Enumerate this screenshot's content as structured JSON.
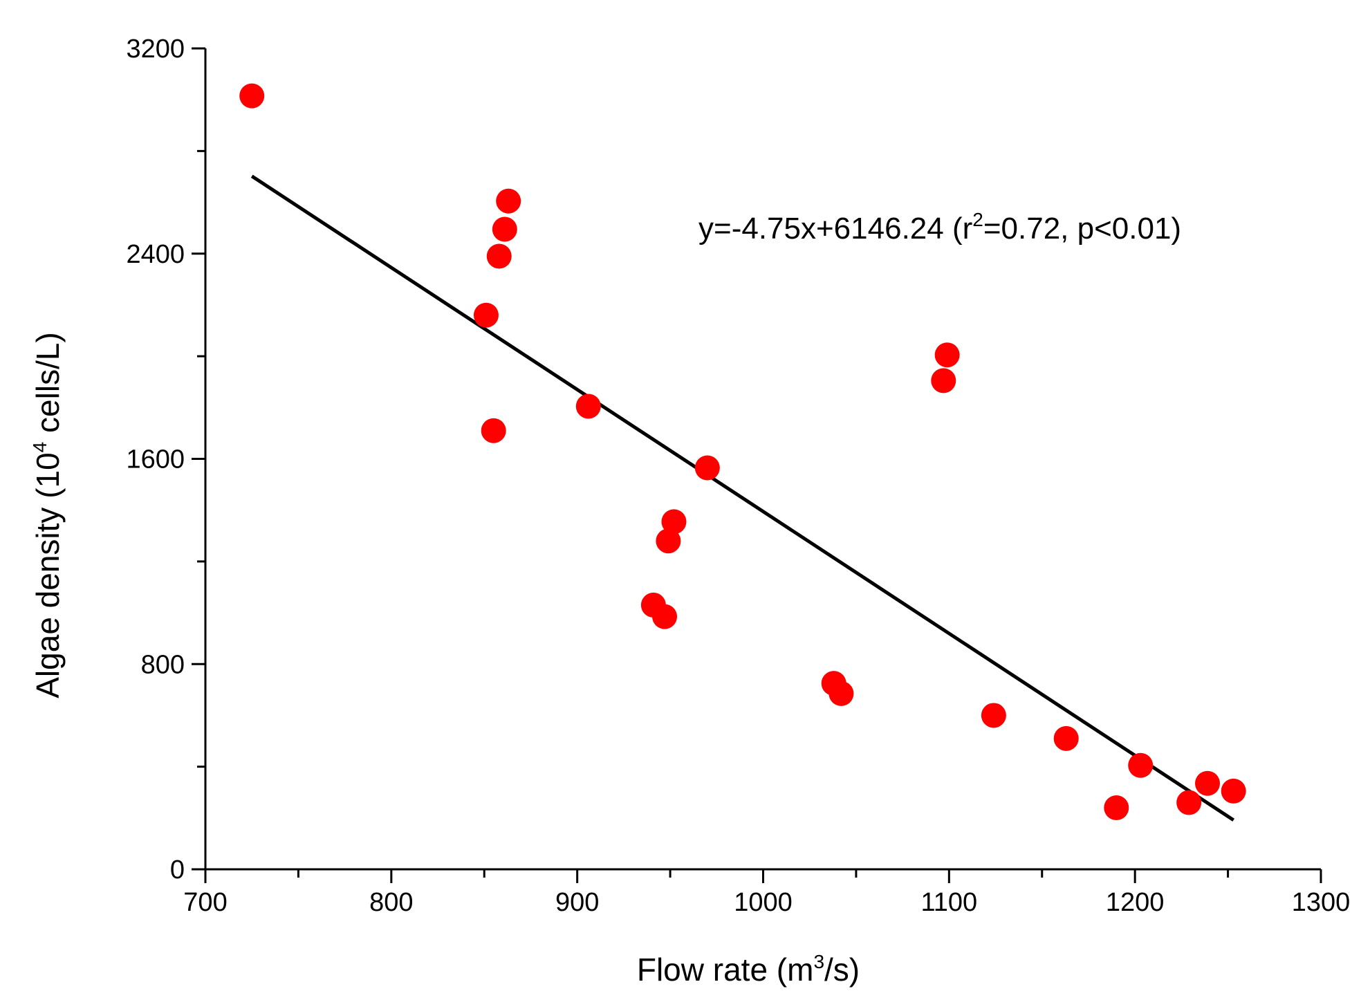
{
  "chart_data": {
    "type": "scatter",
    "title": "",
    "xlabel": {
      "main": "Flow rate (m",
      "sup": "3",
      "tail": "/s)"
    },
    "ylabel": {
      "main": "Algae density (10",
      "sup": "4",
      "tail": " cells/L)"
    },
    "xlim": [
      700,
      1300
    ],
    "ylim": [
      0,
      3200
    ],
    "xticks": [
      700,
      800,
      900,
      1000,
      1100,
      1200,
      1300
    ],
    "yticks": [
      0,
      800,
      1600,
      2400,
      3200
    ],
    "x_minor_step": 50,
    "y_minor_step": 400,
    "grid": false,
    "point_color": "#ff0000",
    "line_color": "#000000",
    "series": [
      {
        "name": "observations",
        "points": [
          [
            725,
            3015
          ],
          [
            851,
            2160
          ],
          [
            855,
            1710
          ],
          [
            858,
            2390
          ],
          [
            861,
            2495
          ],
          [
            863,
            2605
          ],
          [
            906,
            1805
          ],
          [
            941,
            1030
          ],
          [
            947,
            985
          ],
          [
            949,
            1280
          ],
          [
            952,
            1355
          ],
          [
            970,
            1565
          ],
          [
            1038,
            725
          ],
          [
            1042,
            685
          ],
          [
            1097,
            1905
          ],
          [
            1099,
            2005
          ],
          [
            1124,
            600
          ],
          [
            1163,
            510
          ],
          [
            1190,
            240
          ],
          [
            1203,
            405
          ],
          [
            1229,
            260
          ],
          [
            1239,
            335
          ],
          [
            1253,
            305
          ]
        ]
      }
    ],
    "fit_line": {
      "x": [
        725,
        1253
      ],
      "y": [
        2702,
        192
      ]
    },
    "annotation": {
      "prefix": "y=-4.75x+6146.24 (r",
      "sup": "2",
      "suffix": "=0.72, p<0.01)"
    }
  }
}
